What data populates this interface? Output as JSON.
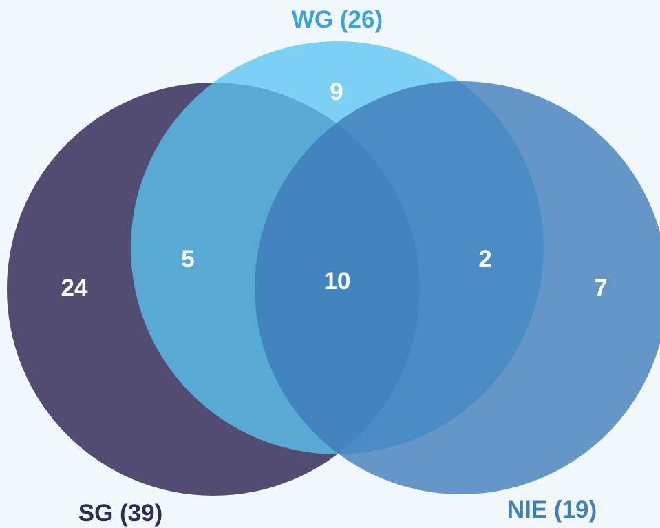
{
  "sets": {
    "sg": {
      "label": "SG (39)",
      "color": "#524c70",
      "label_color": "#2e2b55"
    },
    "wg": {
      "label": "WG (26)",
      "color": "#5ac4f0",
      "label_color": "#3aa3df"
    },
    "nie": {
      "label": "NIE (19)",
      "color": "#3c7ab7",
      "label_color": "#3f7fbe"
    }
  },
  "regions": {
    "sg_only": "24",
    "wg_only": "9",
    "nie_only": "7",
    "sg_wg": "5",
    "wg_nie": "2",
    "all_three": "10"
  }
}
